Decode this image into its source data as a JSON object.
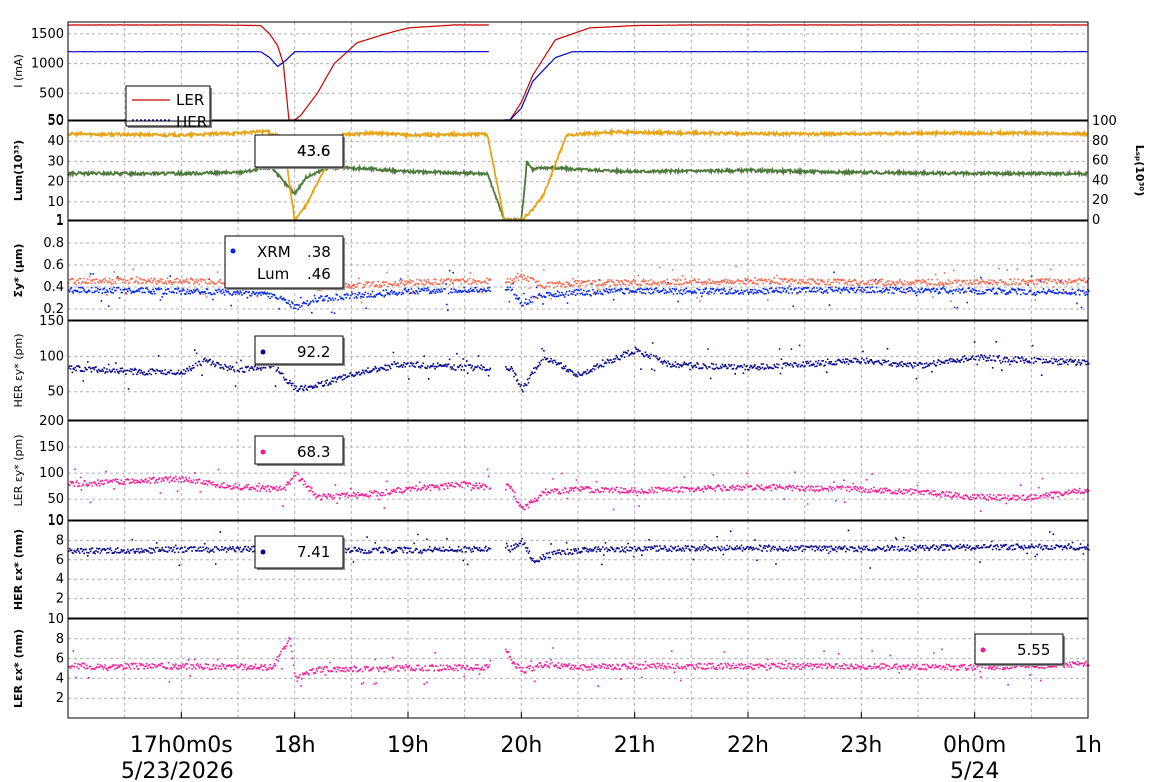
{
  "chart_data": [
    {
      "type": "line",
      "ylabel": "I (mA)",
      "ylim": [
        50,
        1700
      ],
      "yticks": [
        500,
        1000,
        1500,
        50
      ],
      "legend_placement": "left-bottom",
      "series": [
        {
          "name": "LER",
          "color": "#cc0000",
          "x": [
            16.0,
            17.3,
            17.7,
            17.78,
            17.85,
            17.9,
            17.95,
            18.0,
            18.05,
            18.2,
            18.35,
            18.55,
            18.8,
            19.0,
            19.4,
            19.75,
            19.76,
            19.9,
            20.0,
            20.1,
            20.3,
            20.6,
            21.0,
            21.5,
            22.0,
            23.0,
            24.0,
            25.0
          ],
          "values": [
            1650,
            1650,
            1640,
            1500,
            1300,
            1000,
            50,
            50,
            120,
            500,
            1000,
            1350,
            1500,
            1600,
            1650,
            1650,
            50,
            50,
            350,
            800,
            1400,
            1600,
            1640,
            1650,
            1650,
            1650,
            1650,
            1650
          ]
        },
        {
          "name": "HER",
          "color": "#0000cc",
          "x": [
            16.0,
            17.7,
            17.78,
            17.85,
            17.92,
            18.0,
            19.75,
            19.76,
            19.9,
            20.0,
            20.1,
            20.3,
            20.45,
            20.6,
            21.0,
            22.0,
            24.0,
            25.0
          ],
          "values": [
            1200,
            1200,
            1100,
            950,
            1050,
            1200,
            1200,
            50,
            50,
            250,
            700,
            1100,
            1200,
            1200,
            1200,
            1200,
            1200,
            1200
          ]
        }
      ],
      "label_values": [
        "LER",
        "HER"
      ]
    },
    {
      "type": "line",
      "ylabel": "Lum(10³³)",
      "ylabel2": "Lₛₚ(10³⁰)",
      "ylim": [
        1,
        50
      ],
      "y2lim": [
        0,
        100
      ],
      "yticks": [
        10,
        20,
        30,
        40,
        50,
        1
      ],
      "y2ticks": [
        0,
        20,
        40,
        60,
        80,
        100
      ],
      "series": [
        {
          "name": "Lum",
          "color": "#4e7a3c",
          "x": [
            16.0,
            17.0,
            17.5,
            17.8,
            17.9,
            18.0,
            18.1,
            18.3,
            18.6,
            19.0,
            19.7,
            19.85,
            20.0,
            20.05,
            20.1,
            20.2,
            20.5,
            21.0,
            22.0,
            23.0,
            24.0,
            25.0
          ],
          "values": [
            24,
            24,
            24.5,
            27,
            20,
            14,
            22,
            27,
            26.5,
            25,
            24,
            1,
            1,
            30,
            26,
            27,
            26,
            25,
            25.5,
            24.5,
            24,
            24
          ]
        },
        {
          "name": "Lsp",
          "color": "#e8a317",
          "x": [
            16.0,
            17.0,
            17.5,
            17.75,
            17.9,
            18.0,
            18.1,
            18.25,
            18.4,
            18.7,
            19.0,
            19.7,
            19.85,
            20.0,
            20.1,
            20.2,
            20.4,
            20.8,
            21.5,
            22.5,
            23.5,
            24.5,
            25.0
          ],
          "values": [
            43.6,
            43,
            44,
            45,
            41,
            1,
            8,
            25,
            43,
            44,
            43,
            43.5,
            1,
            1,
            6,
            14,
            43,
            44.5,
            44,
            43.5,
            44,
            44,
            43.5
          ]
        }
      ],
      "label_values": [
        "43.6",
        "43.6"
      ]
    },
    {
      "type": "scatter",
      "ylabel": "Σy* (μm)",
      "ylim": [
        0.1,
        1.0
      ],
      "yticks": [
        0.2,
        0.4,
        0.6,
        0.8,
        1
      ],
      "series": [
        {
          "name": "XRM",
          "color": "#0022ee",
          "x": [
            16.0,
            17.0,
            17.7,
            17.9,
            18.0,
            18.2,
            19.0,
            19.7,
            19.9,
            20.0,
            20.2,
            20.5,
            21.0,
            22.0,
            23.0,
            24.0,
            25.0
          ],
          "values": [
            0.38,
            0.37,
            0.35,
            0.3,
            0.22,
            0.3,
            0.37,
            0.38,
            0.38,
            0.26,
            0.34,
            0.36,
            0.37,
            0.37,
            0.38,
            0.37,
            0.36
          ]
        },
        {
          "name": "Lum",
          "color": "#ff6347",
          "x": [
            16.0,
            17.0,
            17.7,
            17.9,
            18.0,
            18.2,
            19.0,
            19.7,
            19.9,
            20.0,
            20.2,
            20.5,
            21.0,
            22.0,
            23.0,
            24.0,
            25.0
          ],
          "values": [
            0.46,
            0.46,
            0.46,
            0.45,
            0.47,
            0.4,
            0.45,
            0.46,
            0.46,
            0.5,
            0.42,
            0.44,
            0.45,
            0.46,
            0.45,
            0.45,
            0.46
          ]
        }
      ],
      "label_values": [
        "XRM",
        ".38",
        "Lum",
        ".46"
      ]
    },
    {
      "type": "scatter",
      "ylabel": "HER εy* (pm)",
      "ylim": [
        10,
        150
      ],
      "yticks": [
        50,
        100,
        150
      ],
      "series": [
        {
          "name": "HER",
          "color": "#00008b",
          "x": [
            16.0,
            16.5,
            17.0,
            17.2,
            17.5,
            17.8,
            18.0,
            18.2,
            18.6,
            19.0,
            19.5,
            19.7,
            19.9,
            20.0,
            20.2,
            20.5,
            21.0,
            21.3,
            22.0,
            22.5,
            23.0,
            23.5,
            24.0,
            24.5,
            25.0
          ],
          "values": [
            85,
            80,
            78,
            95,
            80,
            90,
            55,
            60,
            80,
            90,
            85,
            85,
            85,
            55,
            100,
            75,
            110,
            90,
            85,
            90,
            95,
            88,
            100,
            95,
            92.2
          ]
        }
      ],
      "label_values": [
        "92.2"
      ]
    },
    {
      "type": "scatter",
      "ylabel": "LER εy* (pm)",
      "ylim": [
        10,
        200
      ],
      "yticks": [
        10,
        50,
        100,
        150,
        200
      ],
      "series": [
        {
          "name": "LER",
          "color": "#ff1493",
          "x": [
            16.0,
            16.5,
            17.0,
            17.3,
            17.5,
            17.9,
            18.0,
            18.2,
            18.6,
            19.0,
            19.5,
            19.7,
            19.9,
            20.0,
            20.2,
            20.5,
            21.0,
            21.5,
            22.0,
            22.5,
            23.0,
            23.5,
            24.0,
            24.5,
            25.0
          ],
          "values": [
            80,
            85,
            90,
            80,
            75,
            70,
            100,
            55,
            60,
            70,
            80,
            75,
            75,
            30,
            65,
            70,
            68,
            70,
            75,
            72,
            70,
            65,
            55,
            55,
            68.3
          ]
        }
      ],
      "label_values": [
        "68.3"
      ]
    },
    {
      "type": "scatter",
      "ylabel": "HER εx* (nm)",
      "ylim": [
        0,
        10
      ],
      "yticks": [
        2,
        4,
        6,
        8,
        10
      ],
      "series": [
        {
          "name": "HER",
          "color": "#00008b",
          "x": [
            16.0,
            17.0,
            17.8,
            17.95,
            18.2,
            19.0,
            19.7,
            19.9,
            20.0,
            20.1,
            20.3,
            20.6,
            21.0,
            22.0,
            23.0,
            24.0,
            25.0
          ],
          "values": [
            7.0,
            7.1,
            7.2,
            6.5,
            7.0,
            7.1,
            7.2,
            7.2,
            8.0,
            6.0,
            6.8,
            7.1,
            7.2,
            7.3,
            7.2,
            7.4,
            7.41
          ]
        }
      ],
      "label_values": [
        "7.41"
      ]
    },
    {
      "type": "scatter",
      "ylabel": "LER εx* (nm)",
      "ylim": [
        0,
        10
      ],
      "yticks": [
        2,
        4,
        6,
        8,
        10
      ],
      "series": [
        {
          "name": "LER",
          "color": "#ff1493",
          "x": [
            16.0,
            17.0,
            17.8,
            17.95,
            18.0,
            18.2,
            19.0,
            19.7,
            19.8,
            19.9,
            20.0,
            20.2,
            20.5,
            21.0,
            22.0,
            23.0,
            24.0,
            25.0
          ],
          "values": [
            5.3,
            5.3,
            5.2,
            8.0,
            4.0,
            5.0,
            5.1,
            5.2,
            8.5,
            6.0,
            4.8,
            5.5,
            5.2,
            5.3,
            5.3,
            5.3,
            5.2,
            5.55
          ]
        }
      ],
      "label_values": [
        "5.55"
      ]
    }
  ],
  "xaxis": {
    "xlim": [
      16.0,
      25.0
    ],
    "tick_values": [
      17.0,
      18.0,
      19.0,
      20.0,
      21.0,
      22.0,
      23.0,
      24.0,
      25.0
    ],
    "tick_labels": [
      "17h0m0s",
      "18h",
      "19h",
      "20h",
      "21h",
      "22h",
      "23h",
      "0h0m",
      "1h"
    ],
    "date_labels": [
      "5/23/2026",
      "5/24"
    ],
    "grid": true
  },
  "style": {
    "ler_current_color": "#cc0000",
    "her_current_color": "#0000cc",
    "lum_color": "#4e7a3c",
    "lsp_color": "#e8a317"
  }
}
